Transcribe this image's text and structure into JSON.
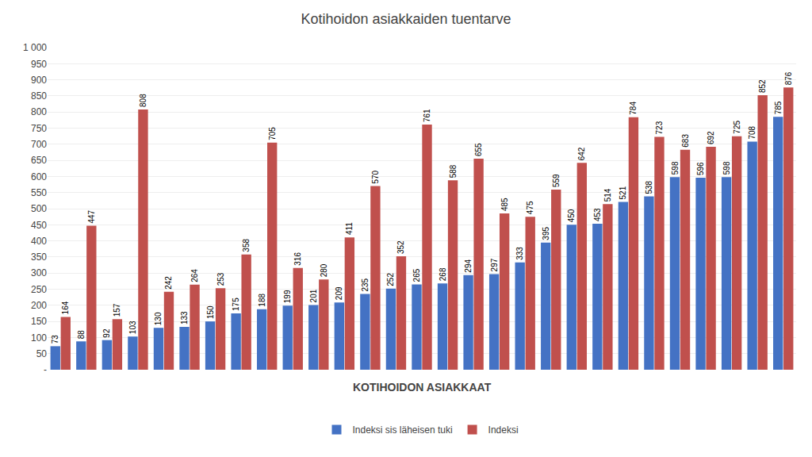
{
  "chart_data": {
    "type": "bar",
    "title": "Kotihoidon asiakkaiden tuentarve",
    "categories": [
      null,
      null,
      null,
      null,
      null,
      null,
      null,
      null,
      null,
      null,
      null,
      null,
      null,
      null,
      null,
      null,
      null,
      null,
      null,
      null,
      null,
      null,
      null,
      null,
      null,
      null,
      null,
      null,
      null
    ],
    "series": [
      {
        "name": "Indeksi sis läheisen tuki",
        "color": "#4472C4",
        "values": [
          73,
          88,
          92,
          103,
          130,
          133,
          150,
          175,
          188,
          199,
          201,
          209,
          235,
          252,
          265,
          268,
          294,
          297,
          333,
          395,
          450,
          453,
          521,
          538,
          598,
          596,
          598,
          708,
          785
        ]
      },
      {
        "name": "Indeksi",
        "color": "#C0504D",
        "values": [
          164,
          447,
          157,
          808,
          242,
          264,
          253,
          358,
          705,
          316,
          280,
          411,
          570,
          352,
          761,
          588,
          655,
          485,
          475,
          559,
          642,
          514,
          784,
          723,
          683,
          692,
          725,
          852,
          876
        ]
      }
    ],
    "annotations": [
      "KOTIHOIDON ASIAKKAAT"
    ],
    "ylim": [
      0,
      1000
    ],
    "yticks": [
      {
        "value": 0,
        "label": "-"
      },
      50,
      100,
      150,
      200,
      250,
      300,
      350,
      400,
      450,
      500,
      550,
      600,
      650,
      700,
      750,
      800,
      850,
      900,
      950,
      {
        "value": 1000,
        "label": "1 000"
      }
    ],
    "grid": true,
    "data_labels": true,
    "legend": "bottom",
    "tick_labels": "y"
  }
}
